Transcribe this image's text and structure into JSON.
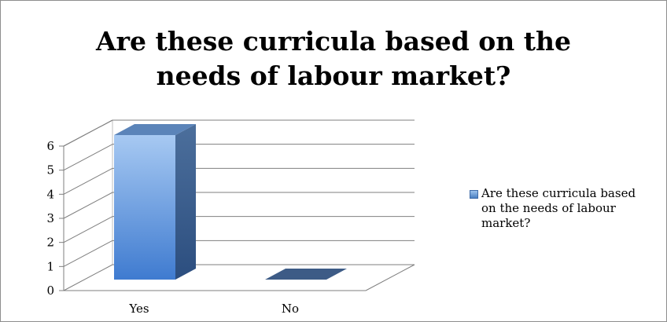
{
  "chart_data": {
    "type": "bar",
    "title": "Are these curricula based on the needs of labour market?",
    "title_lines": [
      "Are these curricula based on the",
      "needs of labour market?"
    ],
    "categories": [
      "Yes",
      "No"
    ],
    "series": [
      {
        "name": "Are these curricula based on the needs of labour market?",
        "values": [
          6,
          0
        ],
        "color": "#4f81bd"
      }
    ],
    "xlabel": "",
    "ylabel": "",
    "ylim": [
      0,
      6
    ],
    "yticks": [
      0,
      1,
      2,
      3,
      4,
      5,
      6
    ],
    "grid": true,
    "legend_position": "right",
    "style": "3d-column"
  }
}
